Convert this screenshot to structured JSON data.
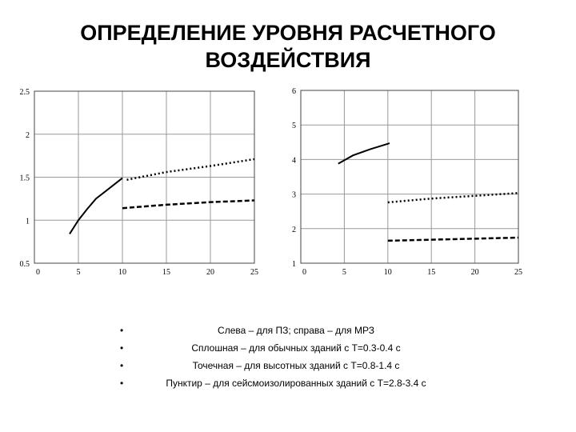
{
  "title": "ОПРЕДЕЛЕНИЕ УРОВНЯ РАСЧЕТНОГО ВОЗДЕЙСТВИЯ",
  "bullets": [
    "Слева – для ПЗ; справа – для МРЗ",
    "Сплошная – для обычных зданий с Т=0.3-0.4 с",
    "Точечная – для высотных зданий с Т=0.8-1.4 с",
    "Пунктир – для сейсмоизолированных зданий с Т=2.8-3.4 с"
  ],
  "chart_data": [
    {
      "type": "line",
      "grid": true,
      "xlim": [
        0,
        25
      ],
      "xticks": [
        0,
        5,
        10,
        15,
        20,
        25
      ],
      "ylim": [
        0.5,
        2.5
      ],
      "yticks": [
        0.5,
        1,
        1.5,
        2,
        2.5
      ],
      "series": [
        {
          "color": "#000000",
          "line_style": "solid",
          "x": [
            4,
            5,
            6,
            7,
            8,
            9,
            10
          ],
          "values": [
            0.84,
            1.0,
            1.13,
            1.25,
            1.33,
            1.41,
            1.49
          ]
        },
        {
          "color": "#000000",
          "line_style": "dotted",
          "x": [
            10.5,
            15,
            20,
            25
          ],
          "values": [
            1.47,
            1.56,
            1.63,
            1.71
          ]
        },
        {
          "color": "#000000",
          "line_style": "dashed",
          "x": [
            10,
            15,
            20,
            25
          ],
          "values": [
            1.14,
            1.18,
            1.21,
            1.23
          ]
        }
      ]
    },
    {
      "type": "line",
      "grid": true,
      "xlim": [
        0,
        25
      ],
      "xticks": [
        0,
        5,
        10,
        15,
        20,
        25
      ],
      "ylim": [
        1,
        6
      ],
      "yticks": [
        1,
        2,
        3,
        4,
        5,
        6
      ],
      "series": [
        {
          "color": "#000000",
          "line_style": "solid",
          "x": [
            4.3,
            6,
            8,
            10.2
          ],
          "values": [
            3.88,
            4.12,
            4.3,
            4.47
          ]
        },
        {
          "color": "#000000",
          "line_style": "dotted",
          "x": [
            10,
            15,
            20,
            25
          ],
          "values": [
            2.76,
            2.87,
            2.95,
            3.03
          ]
        },
        {
          "color": "#000000",
          "line_style": "dashed",
          "x": [
            10,
            15,
            20,
            25
          ],
          "values": [
            1.65,
            1.68,
            1.71,
            1.74
          ]
        }
      ]
    }
  ]
}
